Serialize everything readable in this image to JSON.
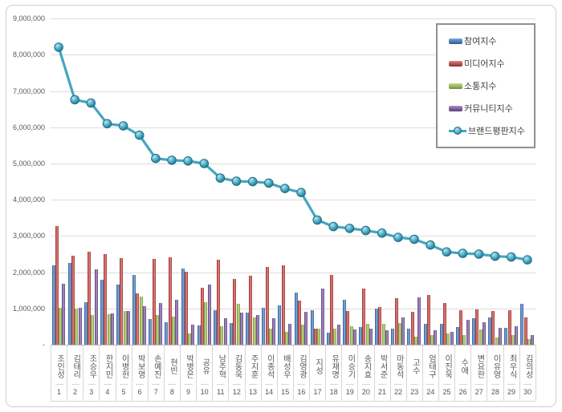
{
  "y_axis": {
    "max": 9000000,
    "step": 1000000,
    "zero_label": "-",
    "tick_labels": [
      "-",
      "1,000,000",
      "2,000,000",
      "3,000,000",
      "4,000,000",
      "5,000,000",
      "6,000,000",
      "7,000,000",
      "8,000,000",
      "9,000,000"
    ]
  },
  "legend": {
    "items": [
      {
        "key": "participation",
        "label": "참여지수",
        "color": "#4F81BD",
        "swatch": "bar"
      },
      {
        "key": "media",
        "label": "미디어지수",
        "color": "#C0504D",
        "swatch": "bar"
      },
      {
        "key": "communication",
        "label": "소통지수",
        "color": "#9BBB59",
        "swatch": "bar"
      },
      {
        "key": "community",
        "label": "커뮤니티지수",
        "color": "#8064A2",
        "swatch": "bar"
      },
      {
        "key": "total",
        "label": "브랜드평판지수",
        "color": "#4BACC6",
        "swatch": "line-marker"
      }
    ]
  },
  "chart_data": {
    "type": "bar",
    "title": "",
    "grid": true,
    "legend_position": "top-right",
    "ylim": [
      0,
      9000000
    ],
    "ytick_step": 1000000,
    "categories": [
      "조인성",
      "김태리",
      "조승우",
      "한지민",
      "이병헌",
      "박보영",
      "손예진",
      "현빈",
      "박병은",
      "공유",
      "남주혁",
      "김동욱",
      "주지훈",
      "이종석",
      "배성우",
      "김영광",
      "지성",
      "유재명",
      "이승기",
      "송지효",
      "박서준",
      "마동석",
      "고수",
      "엄태구",
      "이진욱",
      "수애",
      "변요한",
      "이유영",
      "최우식",
      "김의성"
    ],
    "rank_labels": [
      "1",
      "2",
      "3",
      "4",
      "5",
      "6",
      "7",
      "8",
      "9",
      "10",
      "11",
      "12",
      "13",
      "14",
      "15",
      "16",
      "17",
      "18",
      "19",
      "20",
      "21",
      "22",
      "23",
      "24",
      "25",
      "26",
      "27",
      "28",
      "29",
      "30"
    ],
    "series": [
      {
        "name": "참여지수",
        "key": "participation",
        "type": "bar",
        "color": "#4F81BD",
        "values": [
          2190000,
          2260000,
          1180000,
          1790000,
          1660000,
          1930000,
          710000,
          620000,
          2100000,
          530000,
          960000,
          590000,
          890000,
          1020000,
          1090000,
          1450000,
          950000,
          330000,
          1250000,
          490000,
          1000000,
          450000,
          440000,
          570000,
          580000,
          490000,
          740000,
          760000,
          460000,
          1130000
        ]
      },
      {
        "name": "미디어지수",
        "key": "media",
        "type": "bar",
        "color": "#C0504D",
        "values": [
          3280000,
          2460000,
          2560000,
          2510000,
          2390000,
          1420000,
          2370000,
          2410000,
          2020000,
          1570000,
          2340000,
          1820000,
          1900000,
          2150000,
          2190000,
          1210000,
          450000,
          1920000,
          920000,
          1540000,
          1050000,
          1290000,
          910000,
          1370000,
          1160000,
          960000,
          980000,
          930000,
          960000,
          760000
        ]
      },
      {
        "name": "소통지수",
        "key": "communication",
        "type": "bar",
        "color": "#9BBB59",
        "values": [
          1010000,
          990000,
          810000,
          850000,
          930000,
          1330000,
          810000,
          770000,
          310000,
          1170000,
          520000,
          1120000,
          760000,
          450000,
          360000,
          550000,
          440000,
          440000,
          510000,
          580000,
          580000,
          590000,
          220000,
          260000,
          310000,
          260000,
          430000,
          210000,
          260000,
          160000
        ]
      },
      {
        "name": "커뮤니티지수",
        "key": "community",
        "type": "bar",
        "color": "#8064A2",
        "values": [
          1690000,
          1010000,
          2070000,
          860000,
          920000,
          1070000,
          1160000,
          1240000,
          560000,
          1660000,
          740000,
          880000,
          810000,
          740000,
          580000,
          900000,
          1550000,
          550000,
          420000,
          450000,
          390000,
          760000,
          1310000,
          390000,
          360000,
          690000,
          630000,
          460000,
          510000,
          260000
        ]
      },
      {
        "name": "브랜드평판지수",
        "key": "total",
        "type": "line",
        "color": "#4BACC6",
        "values": [
          8210000,
          6760000,
          6670000,
          6100000,
          6040000,
          5780000,
          5140000,
          5090000,
          5070000,
          5000000,
          4600000,
          4510000,
          4500000,
          4460000,
          4310000,
          4200000,
          3440000,
          3260000,
          3210000,
          3150000,
          3080000,
          2960000,
          2910000,
          2750000,
          2560000,
          2520000,
          2500000,
          2440000,
          2420000,
          2340000
        ]
      }
    ]
  }
}
